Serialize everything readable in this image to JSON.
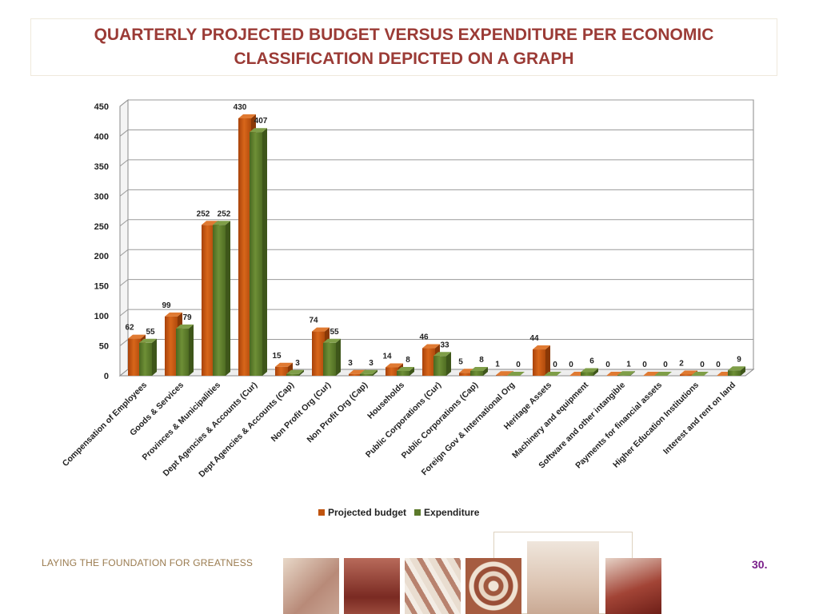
{
  "page": {
    "title": "QUARTERLY PROJECTED BUDGET VERSUS EXPENDITURE PER ECONOMIC CLASSIFICATION DEPICTED ON A GRAPH",
    "tagline": "LAYING THE FOUNDATION FOR GREATNESS",
    "page_number": "30."
  },
  "chart_data": {
    "type": "bar",
    "title": "",
    "xlabel": "",
    "ylabel": "",
    "ylim": [
      0,
      450
    ],
    "yticks": [
      0,
      50,
      100,
      150,
      200,
      250,
      300,
      350,
      400,
      450
    ],
    "grid": true,
    "legend_position": "bottom",
    "categories": [
      "Compensation  of Employees",
      "Goods & Services",
      "Provinces & Municipalities",
      "Dept Agencies & Accounts (Cur)",
      "Dept Agencies & Accounts (Cap)",
      "Non Profit Org (Cur)",
      "Non Profit Org (Cap)",
      "Households",
      "Public Corporations (Cur)",
      "Public Corporations (Cap)",
      "Foreign Gov & International Org",
      "Heritage Assets",
      "Machinery and equipment",
      "Software and other intangible",
      "Payments for financial assets",
      "Higher Education Institutions",
      "Interest and rent on land"
    ],
    "series": [
      {
        "name": "Projected budget",
        "color": "#c0540f",
        "values": [
          62,
          99,
          252,
          430,
          15,
          74,
          3,
          14,
          46,
          5,
          1,
          44,
          0,
          0,
          0,
          2,
          0
        ]
      },
      {
        "name": "Expenditure",
        "color": "#5c7a2b",
        "values": [
          55,
          79,
          252,
          407,
          3,
          55,
          3,
          8,
          33,
          8,
          0,
          0,
          6,
          1,
          0,
          0,
          9
        ]
      }
    ]
  },
  "colors": {
    "title": "#9b3b36",
    "budget": "#c0540f",
    "expenditure": "#5c7a2b",
    "tagline": "#9a7b4f",
    "page_number": "#7a1f8a"
  },
  "footer_images": [
    "hands-writing-photo",
    "people-holding-hands-photo",
    "film-strip-photo",
    "beadwork-pattern-photo",
    "ballet-shoe-photo",
    "saxophone-player-photo"
  ]
}
